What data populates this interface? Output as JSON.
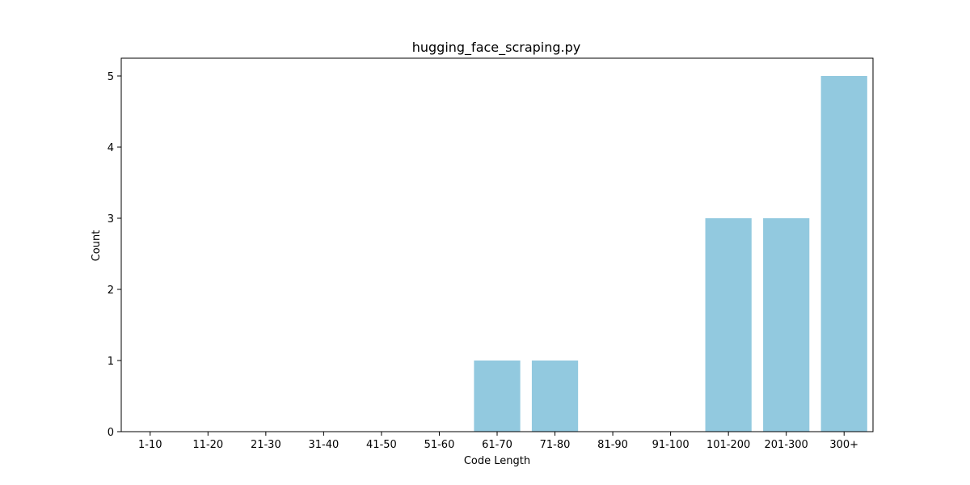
{
  "chart_data": {
    "type": "bar",
    "title": "hugging_face_scraping.py",
    "xlabel": "Code Length",
    "ylabel": "Count",
    "categories": [
      "1-10",
      "11-20",
      "21-30",
      "31-40",
      "41-50",
      "51-60",
      "61-70",
      "71-80",
      "81-90",
      "91-100",
      "101-200",
      "201-300",
      "300+"
    ],
    "values": [
      0,
      0,
      0,
      0,
      0,
      0,
      1,
      1,
      0,
      0,
      3,
      3,
      5
    ],
    "ylim": [
      0,
      5.25
    ],
    "yticks": [
      "0",
      "1",
      "2",
      "3",
      "4",
      "5"
    ],
    "grid": false,
    "bar_color": "#92c9df"
  }
}
